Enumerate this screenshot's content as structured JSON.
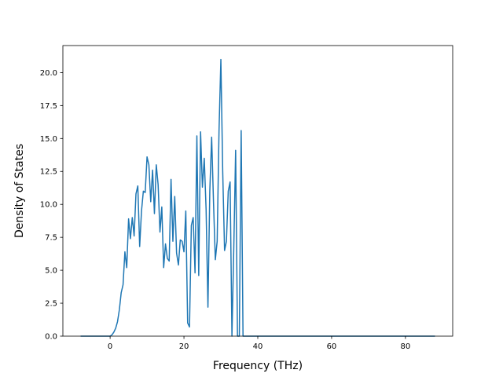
{
  "chart_data": {
    "type": "line",
    "title": "",
    "xlabel": "Frequency (THz)",
    "ylabel": "Density of States",
    "xlim": [
      -12.8,
      92.8
    ],
    "ylim": [
      0,
      22.05
    ],
    "xticks": [
      0,
      20,
      40,
      60,
      80
    ],
    "xtick_labels": [
      "0",
      "20",
      "40",
      "60",
      "80"
    ],
    "yticks": [
      0,
      2.5,
      5,
      7.5,
      10,
      12.5,
      15,
      17.5,
      20
    ],
    "ytick_labels": [
      "0.0",
      "2.5",
      "5.0",
      "7.5",
      "10.0",
      "12.5",
      "15.0",
      "17.5",
      "20.0"
    ],
    "grid": false,
    "legend": false,
    "colors": {
      "line": "#1f77b4"
    },
    "series": [
      {
        "x": [
          -8,
          -4,
          0,
          0.5,
          1,
          1.5,
          2,
          2.5,
          3,
          3.5,
          4,
          4.5,
          5,
          5.5,
          6,
          6.5,
          7,
          7.5,
          8,
          8.5,
          9,
          9.5,
          10,
          10.5,
          11,
          11.5,
          12,
          12.5,
          13,
          13.5,
          14,
          14.5,
          15,
          15.5,
          16,
          16.5,
          17,
          17.5,
          18,
          18.5,
          19,
          19.5,
          20,
          20.5,
          21,
          21.5,
          22,
          22.5,
          23,
          23.5,
          24,
          24.5,
          25,
          25.5,
          26,
          26.5,
          27,
          27.5,
          28,
          28.5,
          29,
          29.5,
          30,
          30.5,
          31,
          31.5,
          32,
          32.5,
          33,
          33.5,
          34,
          34.5,
          35,
          35.5,
          36,
          36.5,
          37,
          38,
          50,
          70,
          88
        ],
        "y": [
          0,
          0,
          0,
          0.1,
          0.3,
          0.6,
          1.1,
          2.0,
          3.3,
          3.9,
          6.4,
          5.2,
          8.9,
          7.4,
          9.0,
          7.6,
          10.8,
          11.4,
          6.8,
          9.5,
          11.0,
          10.9,
          13.6,
          13.0,
          10.2,
          12.6,
          9.3,
          13.0,
          11.5,
          7.9,
          9.8,
          5.2,
          7.0,
          5.9,
          5.7,
          11.9,
          7.2,
          10.6,
          6.3,
          5.4,
          7.3,
          7.2,
          6.4,
          9.5,
          1.0,
          0.7,
          8.4,
          9.0,
          4.8,
          15.2,
          4.6,
          15.5,
          11.3,
          13.5,
          9.6,
          2.2,
          11.0,
          15.1,
          10.2,
          5.8,
          7.2,
          15.6,
          21.0,
          12.5,
          6.5,
          7.2,
          11.0,
          11.7,
          0.0,
          6.7,
          14.1,
          0.0,
          0.0,
          15.6,
          0.0,
          0.0,
          0,
          0,
          0,
          0,
          0
        ]
      }
    ]
  }
}
